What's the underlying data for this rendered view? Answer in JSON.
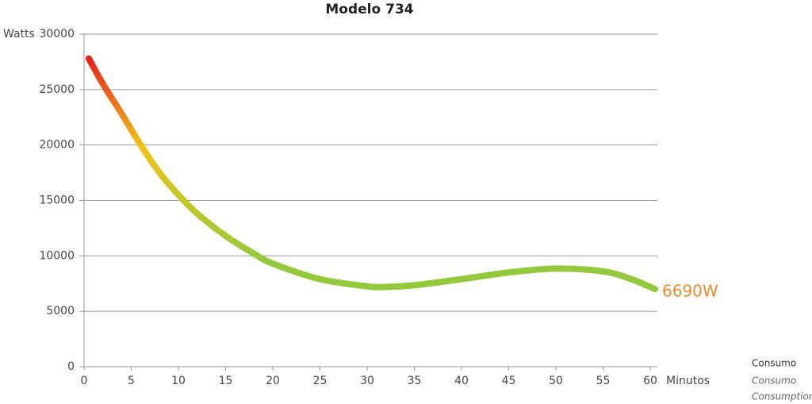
{
  "chart_data": {
    "type": "line",
    "title": "Modelo 734",
    "y_label": "Watts",
    "x_label": "Minutos",
    "x": [
      0.5,
      2,
      4,
      6,
      8,
      10,
      12,
      15,
      18,
      20,
      25,
      30,
      32,
      35,
      40,
      45,
      50,
      55,
      58,
      60.5
    ],
    "series": [
      {
        "name": "Consumo",
        "colors": [
          "#e8201a",
          "#f2c318",
          "#95c93d"
        ],
        "values": [
          27800,
          25500,
          22800,
          20000,
          17500,
          15500,
          13800,
          11800,
          10200,
          9300,
          7900,
          7250,
          7200,
          7350,
          7900,
          8500,
          8850,
          8600,
          7900,
          7000
        ]
      }
    ],
    "legend_subtitles": [
      "Consumo",
      "Consumption"
    ],
    "annotation": "6690W",
    "xlim": [
      0,
      60
    ],
    "xticks": [
      0,
      5,
      10,
      15,
      20,
      25,
      30,
      35,
      40,
      45,
      50,
      55,
      60
    ],
    "ylim": [
      0,
      30000
    ],
    "yticks": [
      0,
      5000,
      10000,
      15000,
      20000,
      25000,
      30000
    ],
    "grid": true
  }
}
